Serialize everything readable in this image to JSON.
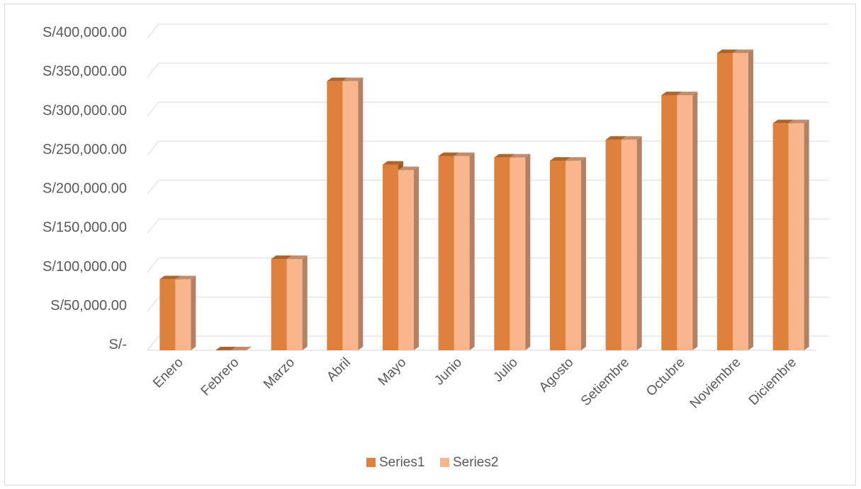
{
  "chart_data": {
    "type": "bar",
    "style": "3d-clustered-column",
    "categories": [
      "Enero",
      "Febrero",
      "Marzo",
      "Abril",
      "Mayo",
      "Junio",
      "Julio",
      "Agosto",
      "Setiembre",
      "Octubre",
      "Noviembre",
      "Diciembre"
    ],
    "series": [
      {
        "name": "Series1",
        "color": "#dd813c",
        "values": [
          91000,
          0,
          117000,
          345000,
          238000,
          249000,
          247000,
          243000,
          270000,
          327000,
          381000,
          291000
        ]
      },
      {
        "name": "Series2",
        "color": "#f9b58b",
        "values": [
          91000,
          0,
          117000,
          345000,
          231000,
          249000,
          247000,
          243000,
          270000,
          327000,
          381000,
          291000
        ]
      }
    ],
    "y_ticks": [
      "S/-",
      "S/50,000.00",
      "S/100,000.00",
      "S/150,000.00",
      "S/200,000.00",
      "S/250,000.00",
      "S/300,000.00",
      "S/350,000.00",
      "S/400,000.00"
    ],
    "ylim": [
      0,
      400000
    ],
    "y_step": 50000,
    "grid": true,
    "legend_position": "bottom"
  }
}
